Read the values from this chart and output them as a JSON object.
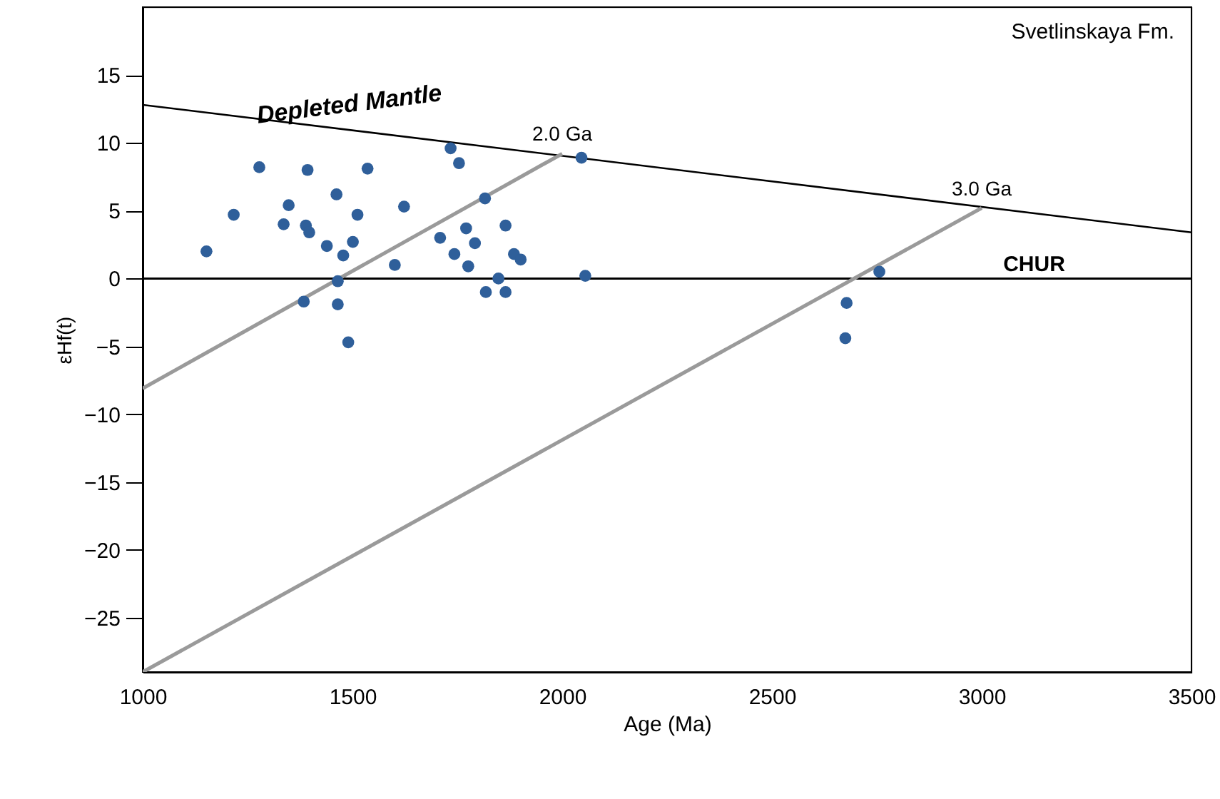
{
  "chart_data": {
    "type": "scatter",
    "xlabel": "Age (Ma)",
    "ylabel": "εHf(t)",
    "xlim": [
      1000,
      3500
    ],
    "xticks": [
      1000,
      1500,
      2000,
      2500,
      3000,
      3500
    ],
    "ylim": [
      -29,
      20
    ],
    "yticks": [
      15,
      10,
      5,
      0,
      -5,
      -10,
      -15,
      -20,
      -25
    ],
    "grid": false,
    "legend": false,
    "marker": "circle",
    "series": [
      {
        "color": "#2f5f9a",
        "x": [
          1152,
          1217,
          1278,
          1348,
          1336,
          1393,
          1389,
          1397,
          1384,
          1462,
          1439,
          1478,
          1501,
          1512,
          1536,
          1465,
          1465,
          1490,
          1623,
          1601,
          1734,
          1754,
          1816,
          1709,
          1771,
          1792,
          1743,
          1776,
          1865,
          1885,
          1901,
          1848,
          1818,
          1865,
          2046,
          2055,
          2756,
          2678,
          2675
        ],
        "values": [
          2.0,
          4.7,
          8.2,
          5.4,
          4.0,
          8.0,
          3.9,
          3.4,
          -1.7,
          6.2,
          2.4,
          1.7,
          2.7,
          4.7,
          8.1,
          -0.2,
          -1.9,
          -4.7,
          5.3,
          1.0,
          9.6,
          8.5,
          5.9,
          3.0,
          3.7,
          2.6,
          1.8,
          0.9,
          3.9,
          1.8,
          1.4,
          0.0,
          -1.0,
          -1.0,
          8.9,
          0.2,
          0.5,
          -1.8,
          -4.4
        ]
      },
      {
        "type": "line",
        "name": "Depleted Mantle",
        "marker": "none",
        "color": "#000000",
        "x": [
          1000,
          3500
        ],
        "values": [
          12.8,
          3.4
        ]
      },
      {
        "type": "line",
        "name": "2.0 Ga",
        "marker": "none",
        "color": "#9a9a9a",
        "x": [
          1000,
          2000
        ],
        "values": [
          -8.1,
          9.2
        ]
      },
      {
        "type": "line",
        "name": "3.0 Ga",
        "marker": "none",
        "color": "#9a9a9a",
        "x": [
          1000,
          3000
        ],
        "values": [
          -29,
          5.2
        ]
      }
    ],
    "ref_lines": [
      {
        "axis": "y",
        "value": 0,
        "label": "CHUR",
        "color": "#000000",
        "line_style": "solid"
      }
    ],
    "annotations": [
      "Svetlinskaya Fm."
    ]
  }
}
